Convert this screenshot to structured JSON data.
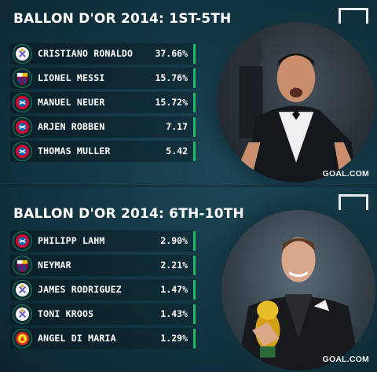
{
  "panels": [
    {
      "title": "BALLON D'OR 2014: 1ST-5TH",
      "rows": [
        {
          "club": "real-madrid",
          "name": "CRISTIANO RONALDO",
          "value": "37.66%"
        },
        {
          "club": "barcelona",
          "name": "LIONEL MESSI",
          "value": "15.76%"
        },
        {
          "club": "bayern",
          "name": "MANUEL NEUER",
          "value": "15.72%"
        },
        {
          "club": "bayern",
          "name": "ARJEN ROBBEN",
          "value": "7.17"
        },
        {
          "club": "bayern",
          "name": "THOMAS MULLER",
          "value": "5.42"
        }
      ],
      "brand": "GOAL.COM"
    },
    {
      "title": "BALLON D'OR 2014: 6TH-10TH",
      "rows": [
        {
          "club": "bayern",
          "name": "PHILIPP LAHM",
          "value": "2.90%"
        },
        {
          "club": "barcelona",
          "name": "NEYMAR",
          "value": "2.21%"
        },
        {
          "club": "real-madrid",
          "name": "JAMES RODRIGUEZ",
          "value": "1.47%"
        },
        {
          "club": "real-madrid",
          "name": "TONI KROOS",
          "value": "1.43%"
        },
        {
          "club": "man-united",
          "name": "ANGEL DI MARIA",
          "value": "1.29%"
        }
      ],
      "brand": "GOAL.COM"
    }
  ],
  "colors": {
    "accent": "#21b86a",
    "background": "#123441"
  }
}
